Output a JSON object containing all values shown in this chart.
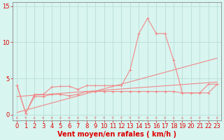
{
  "xlabel": "Vent moyen/en rafales ( km/h )",
  "bg_color": "#d8f5f0",
  "grid_color": "#b8ddd8",
  "line_color": "#f08888",
  "xlim": [
    -0.5,
    23.5
  ],
  "ylim": [
    -0.8,
    15.5
  ],
  "xticks": [
    0,
    1,
    2,
    3,
    4,
    5,
    6,
    7,
    8,
    9,
    10,
    11,
    12,
    13,
    14,
    15,
    16,
    17,
    18,
    19,
    20,
    21,
    22,
    23
  ],
  "yticks": [
    0,
    5,
    10,
    15
  ],
  "rafales_y": [
    4.0,
    0.2,
    2.8,
    2.8,
    3.8,
    3.9,
    3.9,
    3.5,
    4.0,
    4.0,
    4.0,
    4.0,
    4.0,
    6.2,
    11.2,
    13.3,
    11.2,
    11.2,
    7.5,
    3.0,
    3.0,
    3.0,
    4.2,
    4.2
  ],
  "moyen_y": [
    4.0,
    0.2,
    2.5,
    2.5,
    2.8,
    2.8,
    2.6,
    2.8,
    3.2,
    3.2,
    3.2,
    3.2,
    3.2,
    3.2,
    3.2,
    3.2,
    3.2,
    3.2,
    3.2,
    3.0,
    3.0,
    3.0,
    3.0,
    4.2
  ],
  "trend1_x": [
    0,
    23
  ],
  "trend1_y": [
    0.3,
    7.8
  ],
  "trend2_x": [
    0,
    23
  ],
  "trend2_y": [
    2.5,
    4.5
  ],
  "xlabel_color": "#dd0000",
  "xlabel_fontsize": 7,
  "tick_color": "#dd0000",
  "tick_fontsize": 6,
  "spine_color": "#888888",
  "arrow_color": "#f08080"
}
